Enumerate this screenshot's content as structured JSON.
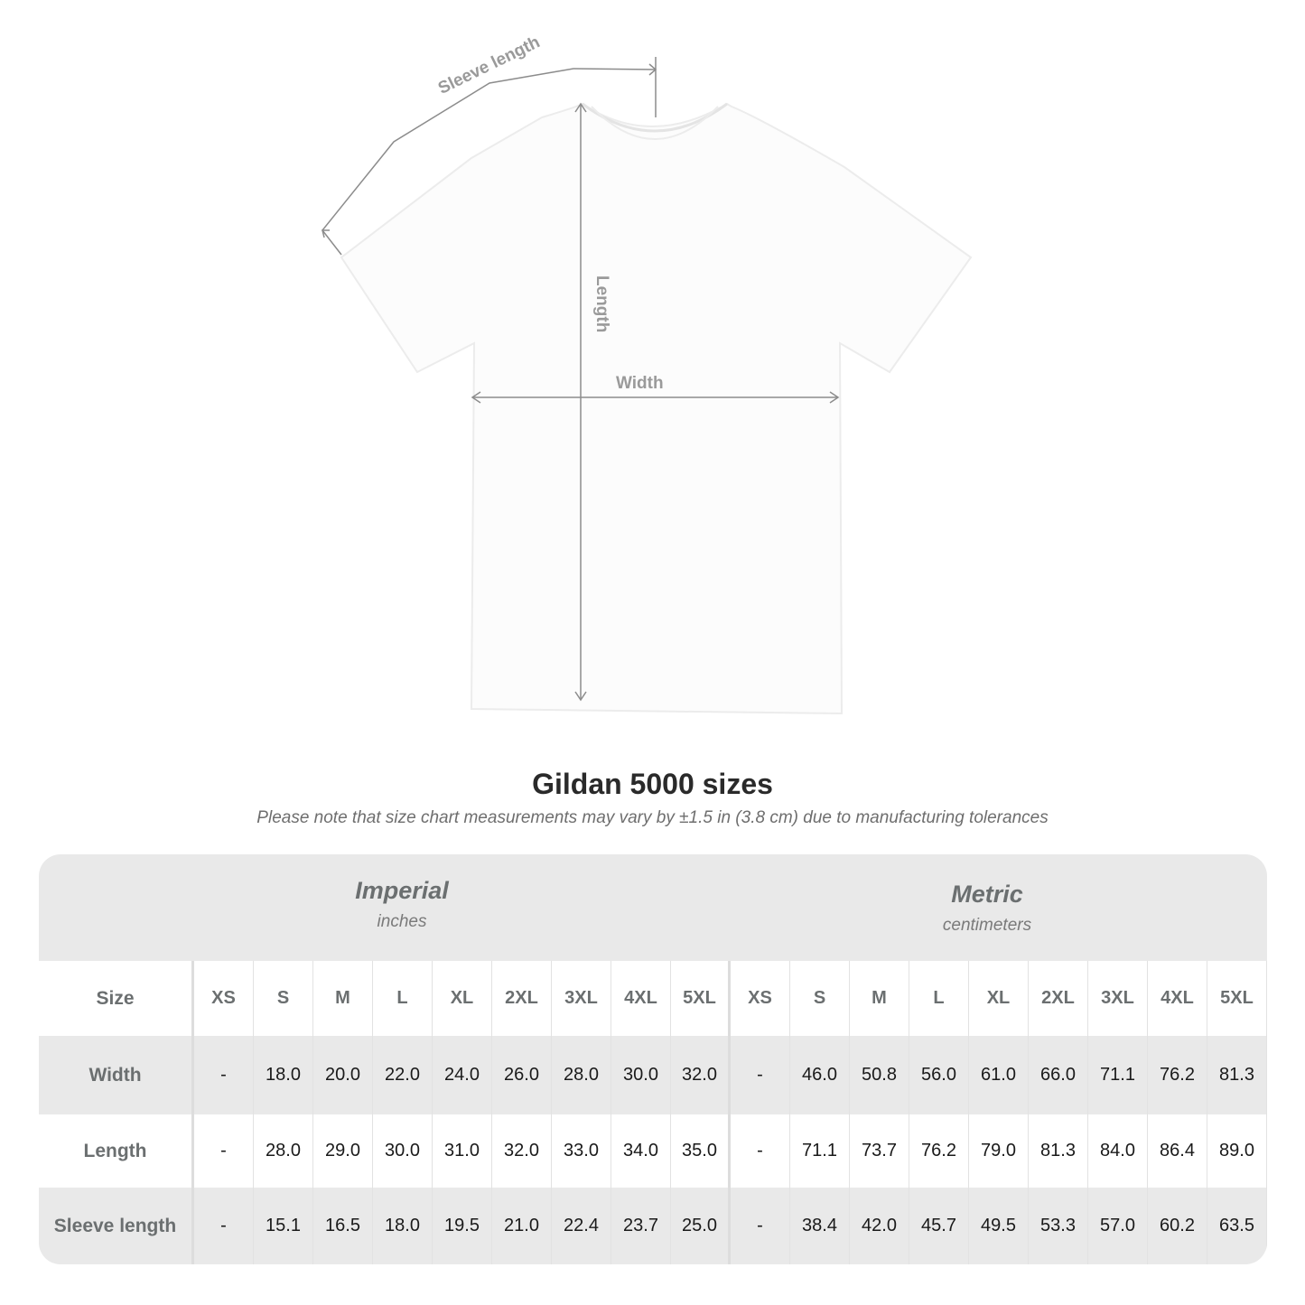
{
  "diagram": {
    "sleeve_label": "Sleeve length",
    "length_label": "Length",
    "width_label": "Width"
  },
  "title": "Gildan 5000 sizes",
  "note": "Please note that size chart measurements may vary by ±1.5 in (3.8 cm) due to manufacturing tolerances",
  "table": {
    "imperial": {
      "name": "Imperial",
      "unit": "inches"
    },
    "metric": {
      "name": "Metric",
      "unit": "centimeters"
    },
    "size_label": "Size",
    "sizes": [
      "XS",
      "S",
      "M",
      "L",
      "XL",
      "2XL",
      "3XL",
      "4XL",
      "5XL"
    ],
    "rows": [
      {
        "label": "Width",
        "imperial": [
          "-",
          "18.0",
          "20.0",
          "22.0",
          "24.0",
          "26.0",
          "28.0",
          "30.0",
          "32.0"
        ],
        "metric": [
          "-",
          "46.0",
          "50.8",
          "56.0",
          "61.0",
          "66.0",
          "71.1",
          "76.2",
          "81.3"
        ]
      },
      {
        "label": "Length",
        "imperial": [
          "-",
          "28.0",
          "29.0",
          "30.0",
          "31.0",
          "32.0",
          "33.0",
          "34.0",
          "35.0"
        ],
        "metric": [
          "-",
          "71.1",
          "73.7",
          "76.2",
          "79.0",
          "81.3",
          "84.0",
          "86.4",
          "89.0"
        ]
      },
      {
        "label": "Sleeve length",
        "imperial": [
          "-",
          "15.1",
          "16.5",
          "18.0",
          "19.5",
          "21.0",
          "22.4",
          "23.7",
          "25.0"
        ],
        "metric": [
          "-",
          "38.4",
          "42.0",
          "45.7",
          "49.5",
          "53.3",
          "57.0",
          "60.2",
          "63.5"
        ]
      }
    ]
  },
  "colors": {
    "band": "#e9e9e9",
    "header_text": "#6b6f70",
    "measure_lines": "#8c8c8c"
  }
}
